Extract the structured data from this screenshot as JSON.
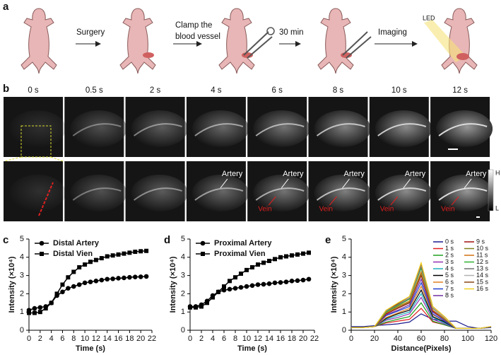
{
  "figure": {
    "panel_labels": [
      "a",
      "b",
      "c",
      "d",
      "e"
    ],
    "schematic": {
      "steps": [
        "Surgery",
        "Clamp the",
        "blood vessel",
        "30 min",
        "Imaging"
      ],
      "led": "LED"
    },
    "time_points": [
      "0 s",
      "0.5 s",
      "2 s",
      "4 s",
      "6 s",
      "8 s",
      "10 s",
      "12 s"
    ],
    "image_labels": {
      "artery": "Artery",
      "vein": "Vein"
    },
    "colorbar": {
      "high": "H",
      "low": "L"
    }
  },
  "chart_data": [
    {
      "type": "line",
      "x": [
        0,
        1,
        2,
        3,
        4,
        5,
        6,
        7,
        8,
        9,
        10,
        11,
        12,
        13,
        14,
        15,
        16,
        17,
        18,
        19,
        20,
        21
      ],
      "series": [
        {
          "name": "Distal Artery",
          "color": "#000000",
          "marker": "circle",
          "values": [
            1.1,
            1.2,
            1.25,
            1.3,
            1.5,
            1.9,
            2.1,
            2.3,
            2.4,
            2.5,
            2.6,
            2.65,
            2.7,
            2.75,
            2.8,
            2.82,
            2.85,
            2.87,
            2.9,
            2.92,
            2.93,
            2.95
          ]
        },
        {
          "name": "Distal Vien",
          "color": "#000000",
          "marker": "square",
          "values": [
            0.95,
            0.95,
            1.0,
            1.2,
            1.5,
            2.0,
            2.5,
            2.9,
            3.2,
            3.45,
            3.6,
            3.75,
            3.85,
            3.95,
            4.05,
            4.1,
            4.15,
            4.2,
            4.25,
            4.3,
            4.33,
            4.35
          ]
        }
      ],
      "xlim": [
        0,
        22
      ],
      "ylim": [
        0,
        5
      ],
      "xticks": [
        0,
        2,
        4,
        6,
        8,
        10,
        12,
        14,
        16,
        18,
        20,
        22
      ],
      "yticks": [
        0,
        1,
        2,
        3,
        4,
        5
      ],
      "xlabel": "Time (s)",
      "ylabel": "Intensity (×10⁴)",
      "legend": "upper left"
    },
    {
      "type": "line",
      "x": [
        0,
        1,
        2,
        3,
        4,
        5,
        6,
        7,
        8,
        9,
        10,
        11,
        12,
        13,
        14,
        15,
        16,
        17,
        18,
        19,
        20,
        21
      ],
      "series": [
        {
          "name": "Proximal Artery",
          "color": "#000000",
          "marker": "circle",
          "values": [
            1.3,
            1.3,
            1.4,
            1.6,
            1.9,
            2.1,
            2.2,
            2.25,
            2.3,
            2.35,
            2.4,
            2.45,
            2.5,
            2.52,
            2.55,
            2.6,
            2.62,
            2.65,
            2.7,
            2.72,
            2.75,
            2.8
          ]
        },
        {
          "name": "Proximal Vien",
          "color": "#000000",
          "marker": "square",
          "values": [
            1.25,
            1.25,
            1.3,
            1.5,
            1.8,
            2.1,
            2.4,
            2.7,
            2.9,
            3.1,
            3.3,
            3.45,
            3.6,
            3.7,
            3.8,
            3.9,
            4.0,
            4.05,
            4.1,
            4.15,
            4.2,
            4.25
          ]
        }
      ],
      "xlim": [
        0,
        22
      ],
      "ylim": [
        0,
        5
      ],
      "xticks": [
        0,
        2,
        4,
        6,
        8,
        10,
        12,
        14,
        16,
        18,
        20,
        22
      ],
      "yticks": [
        0,
        1,
        2,
        3,
        4,
        5
      ],
      "xlabel": "Time (s)",
      "ylabel": "Intensity (×10⁴)",
      "legend": "upper left"
    },
    {
      "type": "line",
      "x": [
        0,
        10,
        20,
        30,
        40,
        50,
        60,
        70,
        80,
        90,
        100,
        110,
        120
      ],
      "series": [
        {
          "name": "0 s",
          "color": "#1a1a8c",
          "values": [
            0.2,
            0.2,
            0.25,
            0.3,
            0.35,
            0.45,
            0.9,
            0.6,
            0.5,
            0.5,
            0.2,
            0.1,
            0.15
          ]
        },
        {
          "name": "1 s",
          "color": "#e02020",
          "values": [
            0.15,
            0.15,
            0.2,
            0.4,
            0.5,
            0.6,
            1.2,
            0.45,
            0.3,
            0.1,
            0.1,
            0.1,
            0.2
          ]
        },
        {
          "name": "2 s",
          "color": "#20a020",
          "values": [
            0.15,
            0.15,
            0.2,
            0.45,
            0.6,
            0.75,
            1.5,
            0.5,
            0.3,
            0.1,
            0.1,
            0.1,
            0.2
          ]
        },
        {
          "name": "3 s",
          "color": "#9030b0",
          "values": [
            0.15,
            0.15,
            0.2,
            0.55,
            0.7,
            0.9,
            1.8,
            0.6,
            0.35,
            0.1,
            0.1,
            0.1,
            0.2
          ]
        },
        {
          "name": "4 s",
          "color": "#20b0c0",
          "values": [
            0.15,
            0.15,
            0.2,
            0.6,
            0.8,
            1.0,
            2.0,
            0.7,
            0.4,
            0.1,
            0.1,
            0.1,
            0.2
          ]
        },
        {
          "name": "5 s",
          "color": "#000000",
          "values": [
            0.15,
            0.15,
            0.2,
            0.65,
            0.9,
            1.1,
            2.2,
            0.75,
            0.45,
            0.1,
            0.1,
            0.1,
            0.2
          ]
        },
        {
          "name": "6 s",
          "color": "#e08020",
          "values": [
            0.15,
            0.15,
            0.2,
            0.7,
            0.95,
            1.2,
            2.4,
            0.85,
            0.5,
            0.1,
            0.1,
            0.1,
            0.2
          ]
        },
        {
          "name": "7 s",
          "color": "#2040d0",
          "values": [
            0.15,
            0.15,
            0.2,
            0.8,
            1.05,
            1.3,
            2.6,
            0.9,
            0.5,
            0.1,
            0.1,
            0.1,
            0.2
          ]
        },
        {
          "name": "8 s",
          "color": "#7030a0",
          "values": [
            0.15,
            0.15,
            0.2,
            0.85,
            1.1,
            1.4,
            2.8,
            1.0,
            0.55,
            0.1,
            0.1,
            0.1,
            0.2
          ]
        },
        {
          "name": "9 s",
          "color": "#a01010",
          "values": [
            0.15,
            0.15,
            0.2,
            0.9,
            1.2,
            1.5,
            3.0,
            1.05,
            0.6,
            0.1,
            0.1,
            0.1,
            0.2
          ]
        },
        {
          "name": "10 s",
          "color": "#808020",
          "values": [
            0.15,
            0.15,
            0.2,
            0.95,
            1.25,
            1.55,
            3.1,
            1.1,
            0.6,
            0.1,
            0.1,
            0.1,
            0.2
          ]
        },
        {
          "name": "11 s",
          "color": "#d07010",
          "values": [
            0.15,
            0.15,
            0.2,
            0.95,
            1.3,
            1.6,
            3.2,
            1.1,
            0.65,
            0.1,
            0.1,
            0.1,
            0.2
          ]
        },
        {
          "name": "12 s",
          "color": "#30b030",
          "values": [
            0.15,
            0.15,
            0.2,
            1.0,
            1.35,
            1.7,
            3.4,
            1.2,
            0.7,
            0.1,
            0.1,
            0.1,
            0.2
          ]
        },
        {
          "name": "13 s",
          "color": "#707070",
          "values": [
            0.15,
            0.15,
            0.2,
            1.05,
            1.4,
            1.75,
            3.5,
            1.2,
            0.7,
            0.1,
            0.1,
            0.1,
            0.2
          ]
        },
        {
          "name": "14 s",
          "color": "#b0b0b0",
          "values": [
            0.15,
            0.15,
            0.2,
            1.1,
            1.45,
            1.8,
            3.6,
            1.25,
            0.7,
            0.1,
            0.1,
            0.1,
            0.2
          ]
        },
        {
          "name": "15 s",
          "color": "#8b4513",
          "values": [
            0.15,
            0.15,
            0.2,
            1.1,
            1.45,
            1.85,
            3.65,
            1.3,
            0.75,
            0.1,
            0.1,
            0.1,
            0.2
          ]
        },
        {
          "name": "16 s",
          "color": "#f0d020",
          "values": [
            0.15,
            0.15,
            0.2,
            1.1,
            1.5,
            1.85,
            3.7,
            1.3,
            0.75,
            0.1,
            0.1,
            0.1,
            0.2
          ]
        }
      ],
      "xlim": [
        0,
        120
      ],
      "ylim": [
        0,
        5
      ],
      "xticks": [
        0,
        20,
        40,
        60,
        80,
        100,
        120
      ],
      "yticks": [
        0,
        1,
        2,
        3,
        4,
        5
      ],
      "xlabel": "Distance(Pixels)",
      "ylabel": "Intensity (×10⁴)",
      "legend": "upper right"
    }
  ]
}
